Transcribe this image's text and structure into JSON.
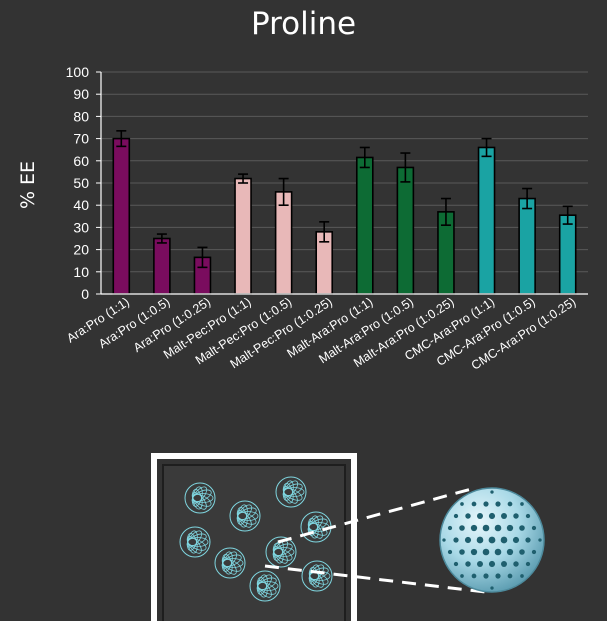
{
  "chart_data": {
    "type": "bar",
    "title": "Proline",
    "ylabel": "% EE",
    "xlabel": "",
    "ylim": [
      0,
      100
    ],
    "yticks": [
      0,
      10,
      20,
      30,
      40,
      50,
      60,
      70,
      80,
      90,
      100
    ],
    "grid": true,
    "legend": "none",
    "categories": [
      "Ara:Pro (1:1)",
      "Ara:Pro (1:0.5)",
      "Ara:Pro (1:0.25)",
      "Malt-Pec:Pro (1:1)",
      "Malt-Pec:Pro (1:0.5)",
      "Malt-Pec:Pro (1:0.25)",
      "Malt-Ara:Pro (1:1)",
      "Malt-Ara:Pro (1:0.5)",
      "Malt-Ara:Pro (1:0.25)",
      "CMC-Ara:Pro (1:1)",
      "CMC-Ara:Pro (1:0.5)",
      "CMC-Ara:Pro (1:0.25)"
    ],
    "values": [
      70,
      25,
      16.5,
      52,
      46,
      28,
      61.5,
      57,
      37,
      66,
      43,
      35.5
    ],
    "errors": [
      3.5,
      2,
      4.5,
      2,
      6,
      4.5,
      4.5,
      6.5,
      6,
      4,
      4.5,
      4
    ],
    "bar_colors": [
      "#7a0c5e",
      "#7a0c5e",
      "#7a0c5e",
      "#e8b8b8",
      "#e8b8b8",
      "#e8b8b8",
      "#0d6b34",
      "#0d6b34",
      "#0d6b34",
      "#1aa3a3",
      "#1aa3a3",
      "#1aa3a3"
    ]
  },
  "colors": {
    "background": "#333333",
    "text": "#ffffff",
    "gridline": "#5a5a5a",
    "particle": "#7fd6e0",
    "sphere": "#9fd3e3",
    "sphere_dots": "#1f5f6e"
  }
}
